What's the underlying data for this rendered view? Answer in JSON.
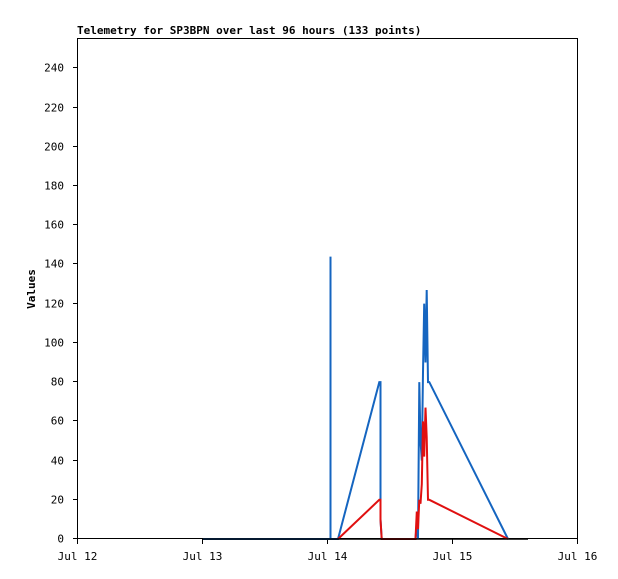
{
  "chart_data": {
    "type": "line",
    "title": "Telemetry for SP3BPN over last 96 hours (133 points)",
    "ylabel": "Values",
    "xlabel": "",
    "x_tick_labels": [
      "Jul 12",
      "Jul 13",
      "Jul 14",
      "Jul 15",
      "Jul 16"
    ],
    "x_range_days": [
      12,
      16
    ],
    "ylim": [
      0,
      255
    ],
    "y_ticks": [
      0,
      20,
      40,
      60,
      80,
      100,
      120,
      140,
      160,
      180,
      200,
      220,
      240
    ],
    "grid": false,
    "legend": "none",
    "series": [
      {
        "color": "#1565c0",
        "points": [
          [
            13.0,
            0
          ],
          [
            14.02,
            0
          ],
          [
            14.02,
            144
          ],
          [
            14.02,
            0
          ],
          [
            14.08,
            0
          ],
          [
            14.41,
            80
          ],
          [
            14.42,
            80
          ],
          [
            14.42,
            40
          ],
          [
            14.42,
            10
          ],
          [
            14.43,
            0
          ],
          [
            14.7,
            0
          ],
          [
            14.71,
            8
          ],
          [
            14.72,
            0
          ],
          [
            14.73,
            80
          ],
          [
            14.74,
            50
          ],
          [
            14.75,
            40
          ],
          [
            14.76,
            85
          ],
          [
            14.77,
            120
          ],
          [
            14.78,
            90
          ],
          [
            14.79,
            127
          ],
          [
            14.8,
            80
          ],
          [
            14.81,
            80
          ],
          [
            15.44,
            0
          ]
        ]
      },
      {
        "color": "#e01010",
        "points": [
          [
            14.08,
            0
          ],
          [
            14.41,
            20
          ],
          [
            14.42,
            20
          ],
          [
            14.42,
            10
          ],
          [
            14.43,
            0
          ],
          [
            14.7,
            0
          ],
          [
            14.71,
            14
          ],
          [
            14.72,
            5
          ],
          [
            14.73,
            20
          ],
          [
            14.74,
            18
          ],
          [
            14.75,
            28
          ],
          [
            14.76,
            60
          ],
          [
            14.77,
            42
          ],
          [
            14.78,
            67
          ],
          [
            14.79,
            52
          ],
          [
            14.8,
            20
          ],
          [
            14.81,
            20
          ],
          [
            15.44,
            0
          ]
        ]
      },
      {
        "color": "#000000",
        "points": [
          [
            13.0,
            0
          ],
          [
            15.6,
            0
          ]
        ]
      }
    ]
  }
}
